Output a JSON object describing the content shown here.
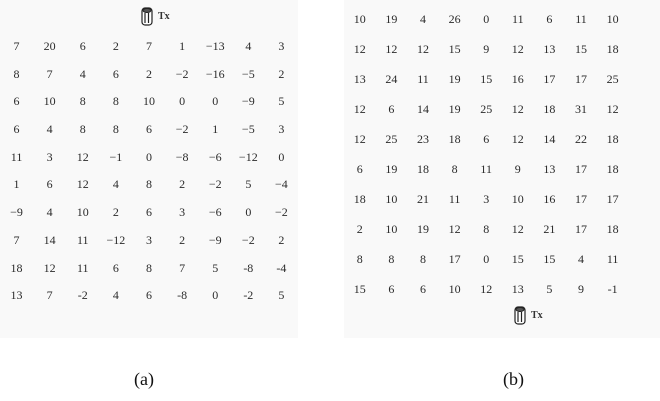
{
  "panel_a": {
    "tx_label": "Tx",
    "caption": "(a)",
    "rows": [
      [
        "7",
        "20",
        "6",
        "2",
        "7",
        "1",
        "−13",
        "4",
        "3"
      ],
      [
        "8",
        "7",
        "4",
        "6",
        "2",
        "−2",
        "−16",
        "−5",
        "2"
      ],
      [
        "6",
        "10",
        "8",
        "8",
        "10",
        "0",
        "0",
        "−9",
        "5"
      ],
      [
        "6",
        "4",
        "8",
        "8",
        "6",
        "−2",
        "1",
        "−5",
        "3"
      ],
      [
        "11",
        "3",
        "12",
        "−1",
        "0",
        "−8",
        "−6",
        "−12",
        "0"
      ],
      [
        "1",
        "6",
        "12",
        "4",
        "8",
        "2",
        "−2",
        "5",
        "−4"
      ],
      [
        "−9",
        "4",
        "10",
        "2",
        "6",
        "3",
        "−6",
        "0",
        "−2"
      ],
      [
        "7",
        "14",
        "11",
        "−12",
        "3",
        "2",
        "−9",
        "−2",
        "2"
      ],
      [
        "18",
        "12",
        "11",
        "6",
        "8",
        "7",
        "5",
        "-8",
        "-4"
      ],
      [
        "13",
        "7",
        "-2",
        "4",
        "6",
        "-8",
        "0",
        "-2",
        "5"
      ]
    ]
  },
  "panel_b": {
    "tx_label": "Tx",
    "caption": "(b)",
    "rows": [
      [
        "10",
        "19",
        "4",
        "26",
        "0",
        "11",
        "6",
        "11",
        "10"
      ],
      [
        "12",
        "12",
        "12",
        "15",
        "9",
        "12",
        "13",
        "15",
        "18"
      ],
      [
        "13",
        "24",
        "11",
        "19",
        "15",
        "16",
        "17",
        "17",
        "25"
      ],
      [
        "12",
        "6",
        "14",
        "19",
        "25",
        "12",
        "18",
        "31",
        "12"
      ],
      [
        "12",
        "25",
        "23",
        "18",
        "6",
        "12",
        "14",
        "22",
        "18"
      ],
      [
        "6",
        "19",
        "18",
        "8",
        "11",
        "9",
        "13",
        "17",
        "18"
      ],
      [
        "18",
        "10",
        "21",
        "11",
        "3",
        "10",
        "16",
        "17",
        "17"
      ],
      [
        "2",
        "10",
        "19",
        "12",
        "8",
        "12",
        "21",
        "17",
        "18"
      ],
      [
        "8",
        "8",
        "8",
        "17",
        "0",
        "15",
        "15",
        "4",
        "11"
      ],
      [
        "15",
        "6",
        "6",
        "10",
        "12",
        "13",
        "5",
        "9",
        "-1"
      ]
    ]
  }
}
